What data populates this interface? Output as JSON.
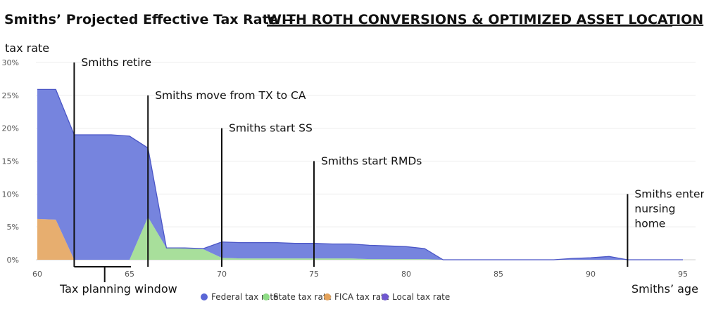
{
  "title": {
    "main": "Smiths’ Projected Effective Tax Rate —",
    "sub": "WITH ROTH CONVERSIONS & OPTIMIZED ASSET LOCATION"
  },
  "chart_data": {
    "type": "area",
    "ylabel": "tax rate",
    "xlabel": "Smiths’ age",
    "xlim": [
      60,
      95
    ],
    "ylim": [
      0,
      30
    ],
    "x_ticks": [
      60,
      65,
      70,
      75,
      80,
      85,
      90,
      95
    ],
    "y_ticks": [
      0,
      5,
      10,
      15,
      20,
      25,
      30
    ],
    "y_tick_labels": [
      "0%",
      "5%",
      "10%",
      "15%",
      "20%",
      "25%",
      "30%"
    ],
    "grid": true,
    "legend_position": "bottom",
    "colors": {
      "federal": "#6f7ddc",
      "state": "#a3dd96",
      "fica": "#e6aa67",
      "local": "#7b68d4",
      "federal_line": "#4a55c6"
    },
    "stack_order": [
      "FICA tax rate",
      "State tax rate",
      "Federal tax rate"
    ],
    "series": [
      {
        "name": "FICA tax rate",
        "x": [
          60,
          61,
          62,
          63,
          64,
          65,
          66,
          67,
          68,
          69,
          70,
          71,
          72,
          73,
          74,
          75,
          76,
          77,
          78,
          79,
          80,
          81,
          82,
          83,
          84,
          85,
          86,
          87,
          88,
          89,
          90,
          91,
          92,
          93,
          94,
          95
        ],
        "values": [
          6.2,
          6.1,
          0,
          0,
          0,
          0,
          0,
          0,
          0,
          0,
          0,
          0,
          0,
          0,
          0,
          0,
          0,
          0,
          0,
          0,
          0,
          0,
          0,
          0,
          0,
          0,
          0,
          0,
          0,
          0,
          0,
          0,
          0,
          0,
          0,
          0
        ]
      },
      {
        "name": "State tax rate",
        "x": [
          60,
          61,
          62,
          63,
          64,
          65,
          66,
          67,
          68,
          69,
          70,
          71,
          72,
          73,
          74,
          75,
          76,
          77,
          78,
          79,
          80,
          81,
          82,
          83,
          84,
          85,
          86,
          87,
          88,
          89,
          90,
          91,
          92,
          93,
          94,
          95
        ],
        "values": [
          0,
          0,
          0,
          0,
          0,
          0,
          6.5,
          1.8,
          1.7,
          1.6,
          0.3,
          0.2,
          0.2,
          0.2,
          0.2,
          0.2,
          0.2,
          0.2,
          0.1,
          0.1,
          0.1,
          0.1,
          0,
          0,
          0,
          0,
          0,
          0,
          0,
          0,
          0,
          0,
          0,
          0,
          0,
          0
        ]
      },
      {
        "name": "Federal tax rate",
        "x": [
          60,
          61,
          62,
          63,
          64,
          65,
          66,
          67,
          68,
          69,
          70,
          71,
          72,
          73,
          74,
          75,
          76,
          77,
          78,
          79,
          80,
          81,
          82,
          83,
          84,
          85,
          86,
          87,
          88,
          89,
          90,
          91,
          92,
          93,
          94,
          95
        ],
        "values": [
          19.7,
          19.8,
          19.0,
          19.0,
          19.0,
          18.8,
          10.5,
          0,
          0.1,
          0.1,
          2.4,
          2.4,
          2.4,
          2.4,
          2.3,
          2.3,
          2.2,
          2.2,
          2.1,
          2.0,
          1.9,
          1.6,
          0,
          0,
          0,
          0,
          0,
          0,
          0,
          0.2,
          0.3,
          0.5,
          0,
          0,
          0,
          0
        ]
      },
      {
        "name": "Local tax rate",
        "x": [
          60,
          95
        ],
        "values": [
          0,
          0
        ]
      }
    ],
    "annotations": [
      {
        "age": 62,
        "text": "Smiths retire",
        "top_value": 30
      },
      {
        "age": 66,
        "text": "Smiths move from TX to CA",
        "top_value": 25
      },
      {
        "age": 70,
        "text": "Smiths start SS",
        "top_value": 20
      },
      {
        "age": 75,
        "text": "Smiths start RMDs",
        "top_value": 15
      },
      {
        "age": 92,
        "text": [
          "Smiths enter",
          "nursing",
          "home"
        ],
        "top_value": 10
      }
    ],
    "bracket": {
      "from": 62,
      "to": 65,
      "text": "Tax planning window"
    }
  },
  "legend": [
    {
      "label": "Federal tax rate",
      "color": "#5a66d6"
    },
    {
      "label": "State tax rate",
      "color": "#8fdc86"
    },
    {
      "label": "FICA tax rate",
      "color": "#e4a35c"
    },
    {
      "label": "Local tax rate",
      "color": "#7058cf"
    }
  ]
}
